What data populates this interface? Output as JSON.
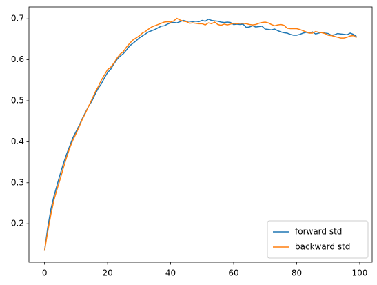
{
  "chart_data": {
    "type": "line",
    "x": [
      0,
      1,
      2,
      3,
      4,
      5,
      6,
      7,
      8,
      9,
      10,
      11,
      12,
      13,
      14,
      15,
      16,
      17,
      18,
      19,
      20,
      21,
      22,
      23,
      24,
      25,
      26,
      27,
      28,
      29,
      30,
      31,
      32,
      33,
      34,
      35,
      36,
      37,
      38,
      39,
      40,
      41,
      42,
      43,
      44,
      45,
      46,
      47,
      48,
      49,
      50,
      51,
      52,
      53,
      54,
      55,
      56,
      57,
      58,
      59,
      60,
      61,
      62,
      63,
      64,
      65,
      66,
      67,
      68,
      69,
      70,
      71,
      72,
      73,
      74,
      75,
      76,
      77,
      78,
      79,
      80,
      81,
      82,
      83,
      84,
      85,
      86,
      87,
      88,
      89,
      90,
      91,
      92,
      93,
      94,
      95,
      96,
      97,
      98,
      99
    ],
    "series": [
      {
        "name": "forward std",
        "color": "#1f77b4",
        "values": [
          0.134,
          0.19,
          0.235,
          0.268,
          0.295,
          0.322,
          0.347,
          0.37,
          0.39,
          0.41,
          0.425,
          0.44,
          0.457,
          0.472,
          0.487,
          0.499,
          0.515,
          0.53,
          0.541,
          0.556,
          0.569,
          0.577,
          0.59,
          0.601,
          0.609,
          0.615,
          0.624,
          0.634,
          0.64,
          0.646,
          0.653,
          0.658,
          0.663,
          0.668,
          0.671,
          0.674,
          0.678,
          0.682,
          0.683,
          0.687,
          0.69,
          0.691,
          0.69,
          0.693,
          0.696,
          0.694,
          0.694,
          0.693,
          0.694,
          0.693,
          0.696,
          0.694,
          0.699,
          0.696,
          0.695,
          0.694,
          0.692,
          0.691,
          0.692,
          0.691,
          0.686,
          0.687,
          0.686,
          0.687,
          0.679,
          0.68,
          0.683,
          0.68,
          0.681,
          0.682,
          0.675,
          0.674,
          0.673,
          0.675,
          0.671,
          0.668,
          0.666,
          0.665,
          0.662,
          0.66,
          0.66,
          0.662,
          0.665,
          0.667,
          0.665,
          0.668,
          0.663,
          0.665,
          0.667,
          0.665,
          0.664,
          0.66,
          0.661,
          0.664,
          0.663,
          0.662,
          0.661,
          0.665,
          0.662,
          0.657
        ]
      },
      {
        "name": "backward std",
        "color": "#ff7f0e",
        "values": [
          0.134,
          0.18,
          0.222,
          0.258,
          0.285,
          0.31,
          0.337,
          0.362,
          0.385,
          0.404,
          0.42,
          0.437,
          0.455,
          0.47,
          0.487,
          0.503,
          0.52,
          0.534,
          0.55,
          0.563,
          0.576,
          0.582,
          0.592,
          0.604,
          0.614,
          0.62,
          0.631,
          0.64,
          0.648,
          0.653,
          0.658,
          0.665,
          0.669,
          0.675,
          0.68,
          0.683,
          0.686,
          0.689,
          0.692,
          0.693,
          0.692,
          0.695,
          0.701,
          0.697,
          0.694,
          0.693,
          0.689,
          0.69,
          0.689,
          0.688,
          0.688,
          0.685,
          0.69,
          0.688,
          0.692,
          0.686,
          0.684,
          0.687,
          0.685,
          0.687,
          0.689,
          0.688,
          0.689,
          0.689,
          0.688,
          0.686,
          0.685,
          0.686,
          0.689,
          0.691,
          0.692,
          0.69,
          0.686,
          0.683,
          0.685,
          0.686,
          0.684,
          0.677,
          0.676,
          0.676,
          0.676,
          0.674,
          0.671,
          0.668,
          0.665,
          0.665,
          0.669,
          0.667,
          0.666,
          0.664,
          0.66,
          0.659,
          0.657,
          0.655,
          0.653,
          0.653,
          0.655,
          0.658,
          0.659,
          0.654
        ]
      }
    ],
    "xlim": [
      -4.95,
      103.95
    ],
    "xticks": [
      0,
      20,
      40,
      60,
      80,
      100
    ],
    "ylim": [
      0.106,
      0.729
    ],
    "yticks": [
      0.2,
      0.3,
      0.4,
      0.5,
      0.6,
      0.7
    ],
    "legend": "lower right"
  }
}
